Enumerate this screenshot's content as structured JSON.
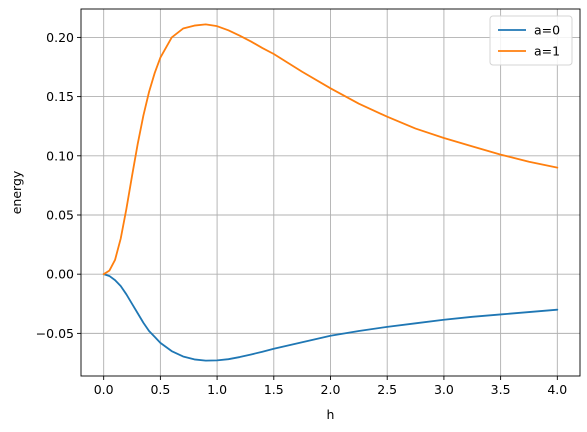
{
  "chart_data": {
    "type": "line",
    "title": "",
    "xlabel": "h",
    "ylabel": "energy",
    "xlim": [
      -0.2,
      4.2
    ],
    "ylim": [
      -0.086,
      0.224
    ],
    "grid": true,
    "legend_position": "top-right",
    "x_ticks": [
      0.0,
      0.5,
      1.0,
      1.5,
      2.0,
      2.5,
      3.0,
      3.5,
      4.0
    ],
    "x_tick_labels": [
      "0.0",
      "0.5",
      "1.0",
      "1.5",
      "2.0",
      "2.5",
      "3.0",
      "3.5",
      "4.0"
    ],
    "y_ticks": [
      -0.05,
      0.0,
      0.05,
      0.1,
      0.15,
      0.2
    ],
    "y_tick_labels": [
      "−0.05",
      "0.00",
      "0.05",
      "0.10",
      "0.15",
      "0.20"
    ],
    "x": [
      0.0,
      0.05,
      0.1,
      0.15,
      0.2,
      0.25,
      0.3,
      0.35,
      0.4,
      0.45,
      0.5,
      0.6,
      0.7,
      0.8,
      0.9,
      1.0,
      1.1,
      1.2,
      1.3,
      1.4,
      1.5,
      1.75,
      2.0,
      2.25,
      2.5,
      2.75,
      3.0,
      3.25,
      3.5,
      3.75,
      4.0
    ],
    "series": [
      {
        "name": "a=0",
        "color": "#1f77b4",
        "values": [
          0.0,
          -0.0015,
          -0.005,
          -0.01,
          -0.017,
          -0.025,
          -0.033,
          -0.041,
          -0.048,
          -0.053,
          -0.058,
          -0.065,
          -0.0695,
          -0.072,
          -0.073,
          -0.0728,
          -0.0718,
          -0.07,
          -0.0678,
          -0.0655,
          -0.063,
          -0.0575,
          -0.052,
          -0.048,
          -0.0445,
          -0.0415,
          -0.0385,
          -0.036,
          -0.034,
          -0.032,
          -0.03
        ]
      },
      {
        "name": "a=1",
        "color": "#ff7f0e",
        "values": [
          0.0,
          0.003,
          0.012,
          0.03,
          0.055,
          0.083,
          0.11,
          0.134,
          0.154,
          0.17,
          0.183,
          0.2,
          0.2075,
          0.21,
          0.211,
          0.2095,
          0.206,
          0.2015,
          0.1965,
          0.191,
          0.186,
          0.171,
          0.157,
          0.144,
          0.133,
          0.123,
          0.115,
          0.108,
          0.101,
          0.095,
          0.09
        ]
      }
    ]
  }
}
